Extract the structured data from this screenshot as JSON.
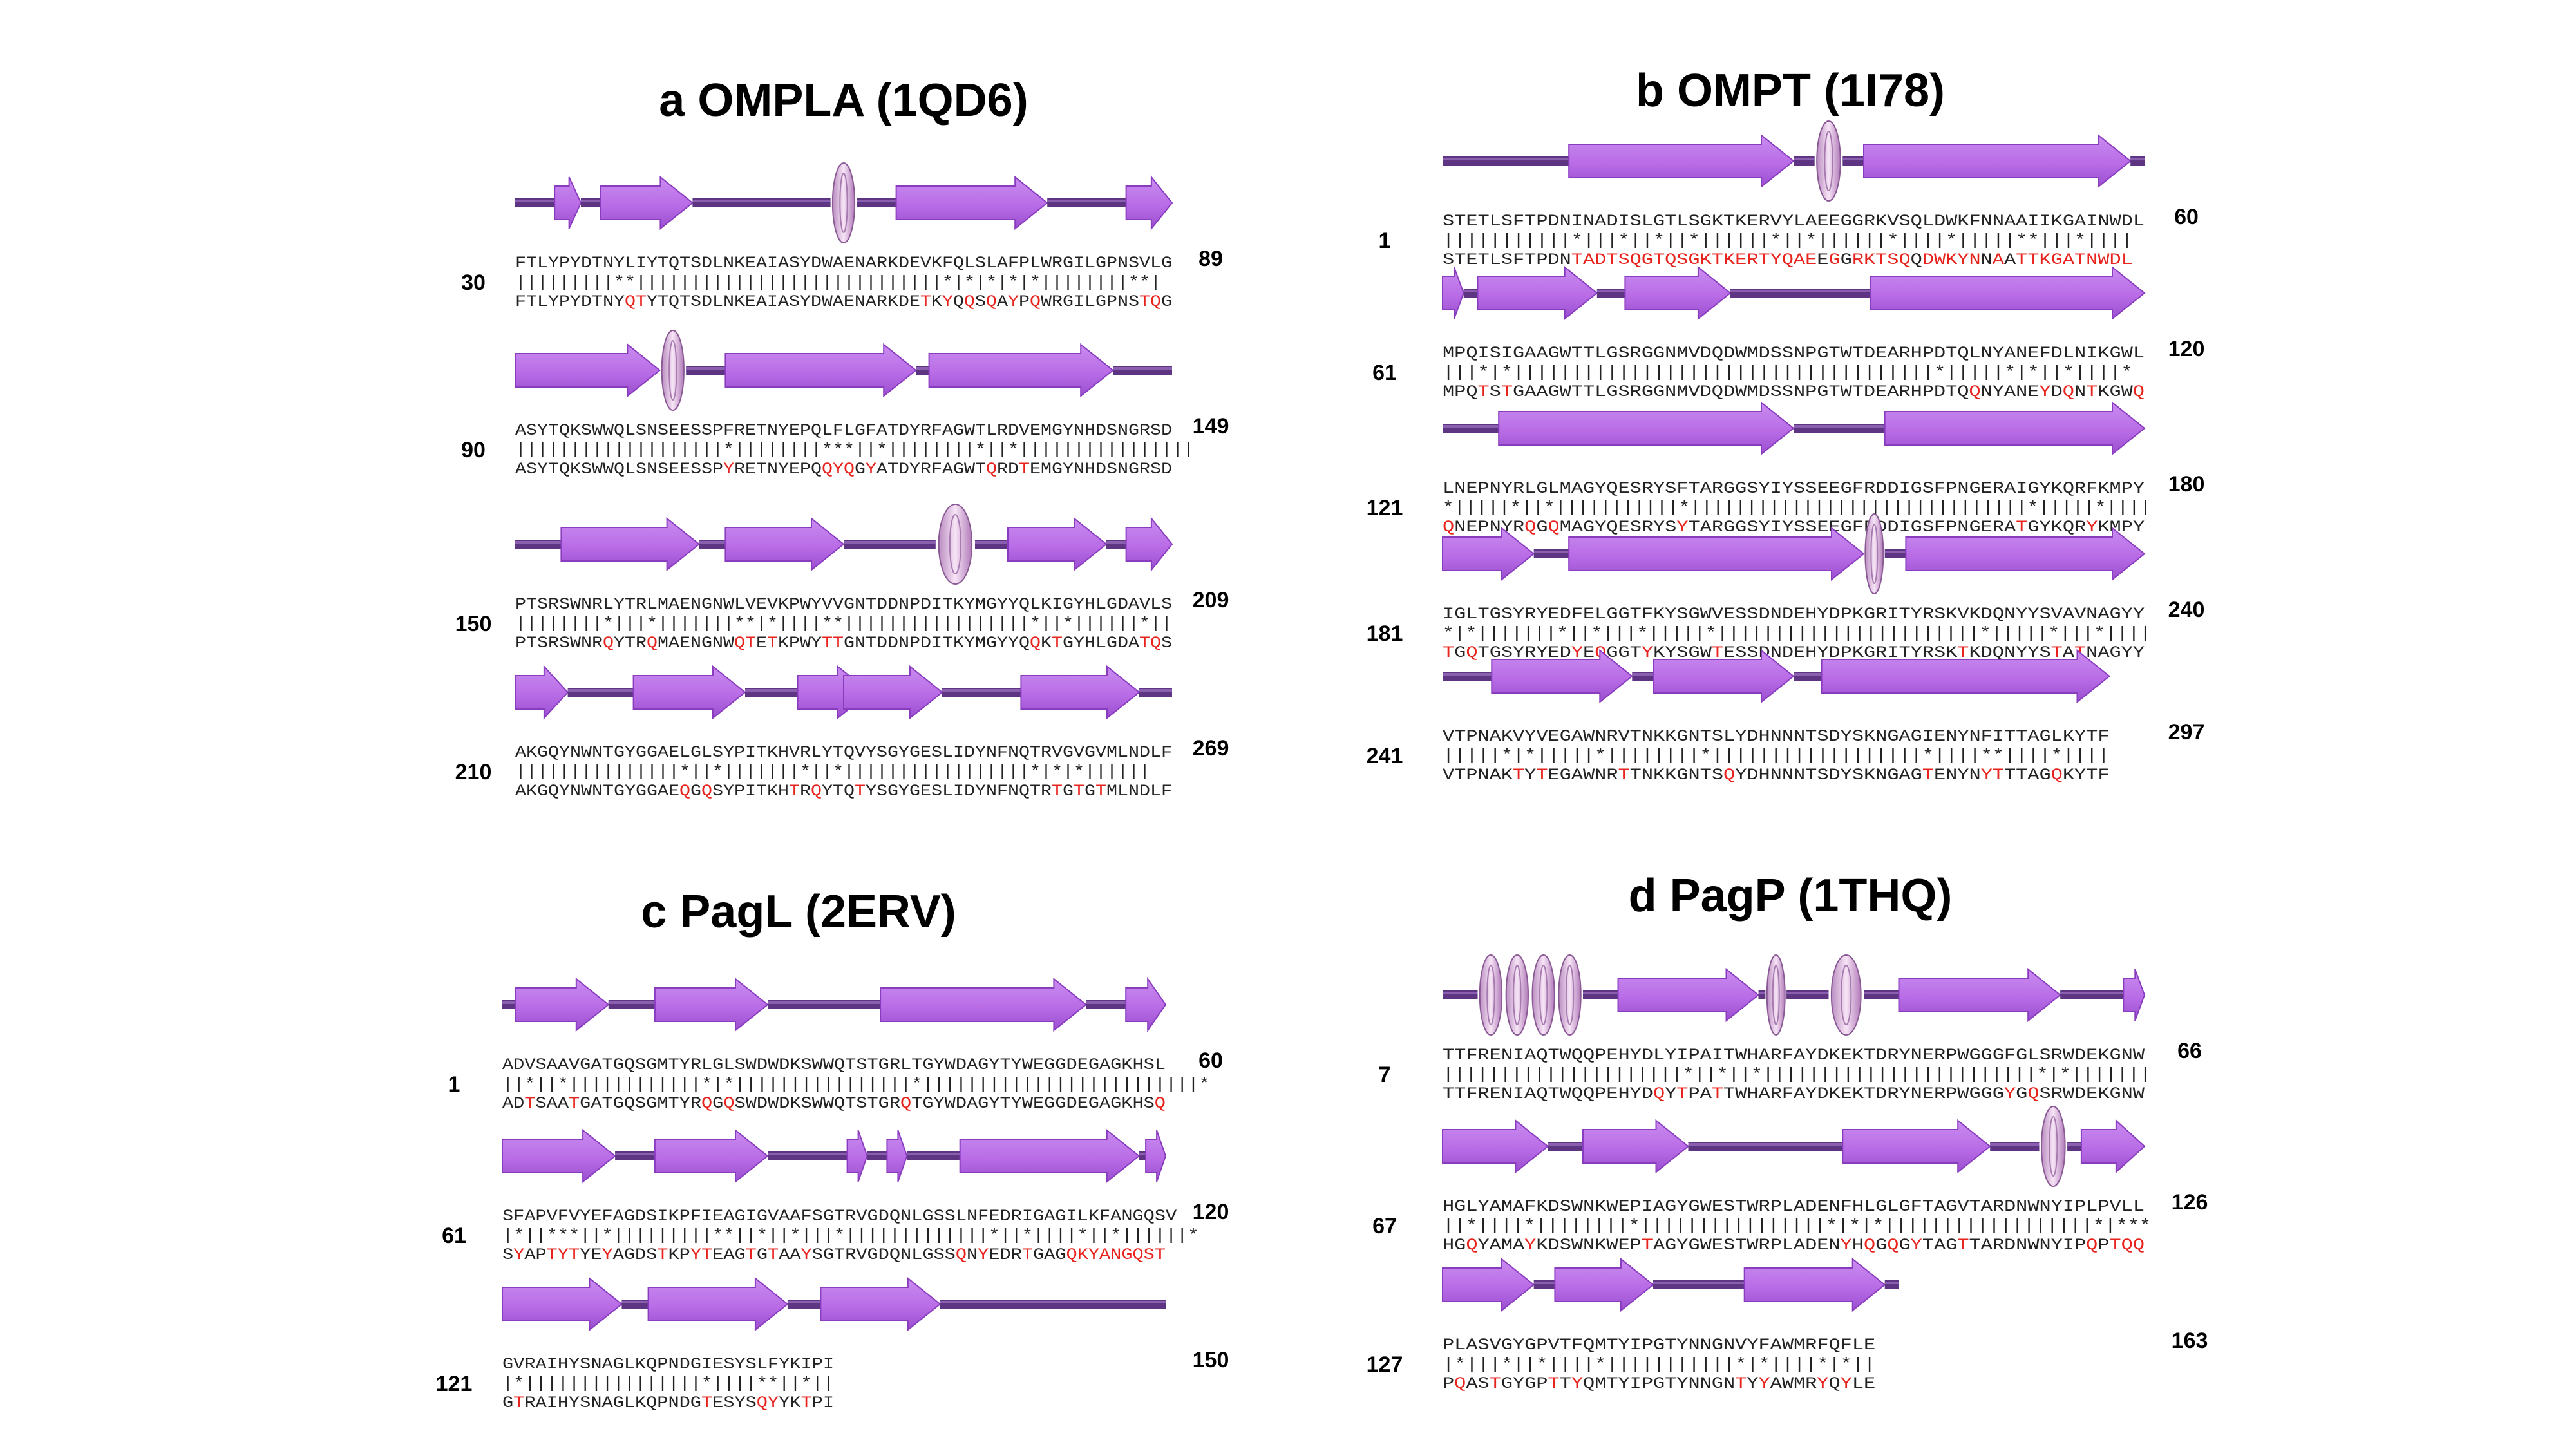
{
  "colors": {
    "strand": "#b96ce6",
    "strand_edge": "#8a3cbf",
    "loop": "#5e3583",
    "helix": "#e3bde6",
    "mutation": "#e8221c",
    "text": "#222222"
  },
  "panels": [
    {
      "id": "a",
      "title": "a  OMPLA (1QD6)",
      "blocks": [
        {
          "start": "30",
          "end": "89",
          "wt": "FTLYPYDTNYLIYTQTSDLNKEAIASYDWAENARKDEVKFQLSLAFPLWRGILGPNSVLG",
          "match": "|||||||||**||||||||||||||||||||||||||||*|*|*|*|*||||||||**|",
          "mut": "FTLYPYDTNYQTYTQTSDLNKEAIASYDWAENARKDETKYQQSQAYPQWRGILGPNSTQG",
          "ss": [
            {
              "t": "L",
              "s": 0,
              "e": 0.06
            },
            {
              "t": "E",
              "s": 0.06,
              "e": 0.1
            },
            {
              "t": "L",
              "s": 0.1,
              "e": 0.13
            },
            {
              "t": "E",
              "s": 0.13,
              "e": 0.27
            },
            {
              "t": "L",
              "s": 0.27,
              "e": 0.48
            },
            {
              "t": "H",
              "s": 0.48,
              "e": 0.52
            },
            {
              "t": "L",
              "s": 0.52,
              "e": 0.58
            },
            {
              "t": "E",
              "s": 0.58,
              "e": 0.81
            },
            {
              "t": "L",
              "s": 0.81,
              "e": 0.93
            },
            {
              "t": "E",
              "s": 0.93,
              "e": 1.0
            }
          ]
        },
        {
          "start": "90",
          "end": "149",
          "wt": "ASYTQKSWWQLSNSEESSPFRETNYEPQLFLGFATDYRFAGWTLRDVEMGYNHDSNGRSD",
          "match": "|||||||||||||||||||*||||||||***||*||||||||*||*||||||||||||||||",
          "mut": "ASYTQKSWWQLSNSEESSPYRETNYEPQQYQGYATDYRFAGWTQRDTEMGYNHDSNGRSD",
          "ss": [
            {
              "t": "E",
              "s": 0.0,
              "e": 0.22
            },
            {
              "t": "L",
              "s": 0.22,
              "e": 0.22
            },
            {
              "t": "H",
              "s": 0.22,
              "e": 0.26
            },
            {
              "t": "L",
              "s": 0.26,
              "e": 0.32
            },
            {
              "t": "E",
              "s": 0.32,
              "e": 0.61
            },
            {
              "t": "L",
              "s": 0.61,
              "e": 0.63
            },
            {
              "t": "E",
              "s": 0.63,
              "e": 0.91
            },
            {
              "t": "L",
              "s": 0.91,
              "e": 1.0
            }
          ]
        },
        {
          "start": "150",
          "end": "209",
          "wt": "PTSRSWNRLYTRLMAENGNWLVEVKPWYVVGNTDDNPDITKYMGYYQLKIGYHLGDAVLS",
          "match": "||||||||*|||*|||||||**|*||||**|||||||||||||||||*||*||||||*||",
          "mut": "PTSRSWNRQYTRQMAENGNWQTETKPWYTTGNTDDNPDITKYMGYYQQKTGYHLGDATQS",
          "ss": [
            {
              "t": "L",
              "s": 0,
              "e": 0.07
            },
            {
              "t": "E",
              "s": 0.07,
              "e": 0.28
            },
            {
              "t": "L",
              "s": 0.28,
              "e": 0.32
            },
            {
              "t": "E",
              "s": 0.32,
              "e": 0.5
            },
            {
              "t": "L",
              "s": 0.5,
              "e": 0.64
            },
            {
              "t": "H",
              "s": 0.64,
              "e": 0.7
            },
            {
              "t": "L",
              "s": 0.7,
              "e": 0.75
            },
            {
              "t": "E",
              "s": 0.75,
              "e": 0.9
            },
            {
              "t": "L",
              "s": 0.9,
              "e": 0.93
            },
            {
              "t": "E",
              "s": 0.93,
              "e": 1.0
            }
          ]
        },
        {
          "start": "210",
          "end": "269",
          "wt": "AKGQYNWNTGYGGAELGLSYPITKHVRLYTQVYSGYGESLIDYNFNQTRVGVGVMLNDLF",
          "match": "|||||||||||||||*||*|||||||*||*|||||||||||||||||*|*|*||||||",
          "mut": "AKGQYNWNTGYGGAEQGQSYPITKHTRQYTQTYSGYGESLIDYNFNQTRTGTGTMLNDLF",
          "ss": [
            {
              "t": "E",
              "s": 0.0,
              "e": 0.08
            },
            {
              "t": "L",
              "s": 0.08,
              "e": 0.18
            },
            {
              "t": "E",
              "s": 0.18,
              "e": 0.35
            },
            {
              "t": "L",
              "s": 0.35,
              "e": 0.43
            },
            {
              "t": "E",
              "s": 0.43,
              "e": 0.54
            },
            {
              "t": "L",
              "s": 0.54,
              "e": 0.5
            },
            {
              "t": "E",
              "s": 0.5,
              "e": 0.65
            },
            {
              "t": "L",
              "s": 0.65,
              "e": 0.77
            },
            {
              "t": "E",
              "s": 0.77,
              "e": 0.95
            },
            {
              "t": "L",
              "s": 0.95,
              "e": 1.0
            }
          ]
        }
      ]
    },
    {
      "id": "b",
      "title": "b  OMPT (1I78)",
      "blocks": [
        {
          "start": "1",
          "end": "60",
          "wt": "STETLSFTPDNINADISLGTLSGKTKERVYLAEEGGRKVSQLDWKFNNAAIIKGAINWDL",
          "match": "|||||||||||*|||*||*||*||||||*||*||||||*||||*|||||**|||*||||",
          "mut": "STETLSFTPDNTADTSQGTQSGKTKERTYQAEEGGRKTSQQDWKYNNAATTKGATNWDL",
          "ss": [
            {
              "t": "L",
              "s": 0,
              "e": 0.18
            },
            {
              "t": "E",
              "s": 0.18,
              "e": 0.5
            },
            {
              "t": "L",
              "s": 0.5,
              "e": 0.53
            },
            {
              "t": "H",
              "s": 0.53,
              "e": 0.57
            },
            {
              "t": "L",
              "s": 0.57,
              "e": 0.6
            },
            {
              "t": "E",
              "s": 0.6,
              "e": 0.98
            },
            {
              "t": "L",
              "s": 0.98,
              "e": 1.0
            }
          ]
        },
        {
          "start": "61",
          "end": "120",
          "wt": "MPQISIGAAGWTTLGSRGGNMVDQDWMDSSNPGTWTDEARHPDTQLNYANEFDLNIKGWL",
          "match": "|||*|*||||||||||||||||||||||||||||||||||||*|||||*|*||*||||*",
          "mut": "MPQTSTGAAGWTTLGSRGGNMVDQDWMDSSNPGTWTDEARHPDTQQNYANEYDQNTKGWQ",
          "ss": [
            {
              "t": "E",
              "s": 0.0,
              "e": 0.03
            },
            {
              "t": "L",
              "s": 0.03,
              "e": 0.05
            },
            {
              "t": "E",
              "s": 0.05,
              "e": 0.22
            },
            {
              "t": "L",
              "s": 0.22,
              "e": 0.26
            },
            {
              "t": "E",
              "s": 0.26,
              "e": 0.41
            },
            {
              "t": "L",
              "s": 0.41,
              "e": 0.61
            },
            {
              "t": "E",
              "s": 0.61,
              "e": 1.0
            }
          ]
        },
        {
          "start": "121",
          "end": "180",
          "wt": "LNEPNYRLGLMAGYQESRYSFTARGGSYIYSSEEGFRDDIGSFPNGERAIGYKQRFKMPY",
          "match": "*|||||*||*|||||||||||*||||||||||||||||||||||||||||||*|||||*||||",
          "mut": "QNEPNYRQGQMAGYQESRYSYTARGGSYIYSSEEGFRDDIGSFPNGERATGYKQRYKMPY",
          "ss": [
            {
              "t": "L",
              "s": 0,
              "e": 0.08
            },
            {
              "t": "E",
              "s": 0.08,
              "e": 0.5
            },
            {
              "t": "L",
              "s": 0.5,
              "e": 0.63
            },
            {
              "t": "E",
              "s": 0.63,
              "e": 1.0
            }
          ]
        },
        {
          "start": "181",
          "end": "240",
          "wt": "IGLTGSYRYEDFELGGTFKYSGWVESSDNDEHYDPKGRITYRSKVKDQNYYSVAVNAGYY",
          "match": "*|*|||||||*||*|||*|||||*|||||||||||||||||||||||*|||||*|||*||||",
          "mut": "TGQTGSYRYEDYEQGGTYKYSGWTESSDNDEHYDPKGRITYRSKTKDQNYYSTATNAGYY",
          "ss": [
            {
              "t": "E",
              "s": 0.0,
              "e": 0.13
            },
            {
              "t": "L",
              "s": 0.13,
              "e": 0.18
            },
            {
              "t": "E",
              "s": 0.18,
              "e": 0.6
            },
            {
              "t": "L",
              "s": 0.6,
              "e": 0.6
            },
            {
              "t": "H",
              "s": 0.6,
              "e": 0.63
            },
            {
              "t": "L",
              "s": 0.63,
              "e": 0.66
            },
            {
              "t": "E",
              "s": 0.66,
              "e": 1.0
            }
          ]
        },
        {
          "start": "241",
          "end": "297",
          "wt": "VTPNAKVYVEGAWNRVTNKKGNTSLYDHNNNTSDYSKNGAGIENYNFITTAGLKYTF",
          "match": "|||||*|*|||||*||||||||*||||||||||||||||||*||||**||||*||||",
          "mut": "VTPNAKTYTEGAWNRTTNKKGNTSQYDHNNNTSDYSKNGAGTENYNYTTTAGQKYTF",
          "ss": [
            {
              "t": "L",
              "s": 0,
              "e": 0.07
            },
            {
              "t": "E",
              "s": 0.07,
              "e": 0.27
            },
            {
              "t": "L",
              "s": 0.27,
              "e": 0.3
            },
            {
              "t": "E",
              "s": 0.3,
              "e": 0.5
            },
            {
              "t": "L",
              "s": 0.5,
              "e": 0.54
            },
            {
              "t": "E",
              "s": 0.54,
              "e": 0.95
            },
            {
              "t": "L",
              "s": 0.95,
              "e": 0.95
            }
          ]
        }
      ]
    },
    {
      "id": "c",
      "title": "c PagL (2ERV)",
      "blocks": [
        {
          "start": "1",
          "end": "60",
          "wt": "ADVSAAVGATGQSGMTYRLGLSWDWDKSWWQTSTGRLTGYWDAGYTYWEGGDEGAGKHSL",
          "match": "||*||*||||||||||||*|*||||||||||||||||*|||||||||||||||||||||||||*",
          "mut": "ADTSAATGATGQSGMTYRQGQSWDWDKSWWQTSTGRQTGYWDAGYTYWEGGDEGAGKHSQ",
          "ss": [
            {
              "t": "L",
              "s": 0,
              "e": 0.02
            },
            {
              "t": "E",
              "s": 0.02,
              "e": 0.16
            },
            {
              "t": "L",
              "s": 0.16,
              "e": 0.23
            },
            {
              "t": "E",
              "s": 0.23,
              "e": 0.4
            },
            {
              "t": "L",
              "s": 0.4,
              "e": 0.57
            },
            {
              "t": "E",
              "s": 0.57,
              "e": 0.88
            },
            {
              "t": "L",
              "s": 0.88,
              "e": 0.94
            },
            {
              "t": "E",
              "s": 0.94,
              "e": 1.0
            }
          ]
        },
        {
          "start": "61",
          "end": "120",
          "wt": "SFAPVFVYEFAGDSIKPFIEAGIGVAAFSGTRVGDQNLGSSLNFEDRIGAGILKFANGQSV",
          "match": "|*||***||*|||||||||**||*||*|||*|||||||||||||*||*||||*||*||||||*",
          "mut": "SYAPTYTYEYAGDSTKPYTEAGTGTAAYSGTRVGDQNLGSSQNYEDRTGAGQKYANGQST",
          "ss": [
            {
              "t": "E",
              "s": 0.0,
              "e": 0.17
            },
            {
              "t": "L",
              "s": 0.17,
              "e": 0.23
            },
            {
              "t": "E",
              "s": 0.23,
              "e": 0.4
            },
            {
              "t": "L",
              "s": 0.4,
              "e": 0.52
            },
            {
              "t": "E",
              "s": 0.52,
              "e": 0.55
            },
            {
              "t": "L",
              "s": 0.55,
              "e": 0.58
            },
            {
              "t": "E",
              "s": 0.58,
              "e": 0.61
            },
            {
              "t": "L",
              "s": 0.61,
              "e": 0.69
            },
            {
              "t": "E",
              "s": 0.69,
              "e": 0.96
            },
            {
              "t": "L",
              "s": 0.96,
              "e": 0.97
            },
            {
              "t": "E",
              "s": 0.97,
              "e": 1.0
            }
          ]
        },
        {
          "start": "121",
          "end": "150",
          "wt": "GVRAIHYSNAGLKQPNDGIESYSLFYKIPI",
          "match": "|*||||||||||||||||*||||**||*||",
          "mut": "GTRAIHYSNAGLKQPNDGTESYSQYYKTPI",
          "ss": [
            {
              "t": "E",
              "s": 0.0,
              "e": 0.18
            },
            {
              "t": "L",
              "s": 0.18,
              "e": 0.22
            },
            {
              "t": "E",
              "s": 0.22,
              "e": 0.43
            },
            {
              "t": "L",
              "s": 0.43,
              "e": 0.48
            },
            {
              "t": "E",
              "s": 0.48,
              "e": 0.66
            },
            {
              "t": "L",
              "s": 0.66,
              "e": 1.0
            }
          ]
        }
      ]
    },
    {
      "id": "d",
      "title": "d  PagP (1THQ)",
      "blocks": [
        {
          "start": "7",
          "end": "66",
          "wt": "TTFRENIAQTWQQPEHYDLYIPAITWHARFAYDKEKTDRYNERPWGGGFGLSRWDEKGNW",
          "match": "|||||||||||||||||||||*||*||*||||||||||||||||||||||||*|*|||||||",
          "mut": "TTFRENIAQTWQQPEHYDQYTPATTWHARFAYDKEKTDRYNERPWGGGYGQSRWDEKGNW",
          "ss": [
            {
              "t": "L",
              "s": 0,
              "e": 0.05
            },
            {
              "t": "H",
              "s": 0.05,
              "e": 0.2
            },
            {
              "t": "L",
              "s": 0.2,
              "e": 0.25
            },
            {
              "t": "E",
              "s": 0.25,
              "e": 0.45
            },
            {
              "t": "L",
              "s": 0.45,
              "e": 0.46
            },
            {
              "t": "H",
              "s": 0.46,
              "e": 0.49
            },
            {
              "t": "L",
              "s": 0.49,
              "e": 0.55
            },
            {
              "t": "H",
              "s": 0.55,
              "e": 0.6
            },
            {
              "t": "L",
              "s": 0.6,
              "e": 0.65
            },
            {
              "t": "E",
              "s": 0.65,
              "e": 0.88
            },
            {
              "t": "L",
              "s": 0.88,
              "e": 0.97
            },
            {
              "t": "E",
              "s": 0.97,
              "e": 1.0
            }
          ]
        },
        {
          "start": "67",
          "end": "126",
          "wt": "HGLYAMAFKDSWNKWEPIAGYGWESTWRPLADENFHLGLGFTAGVTARDNWNYIPLPVLL",
          "match": "||*||||*||||||||*||||||||||||||||*|*|*||||||||||||||||||*|***",
          "mut": "HGQYAMAYKDSWNKWEPTAGYGWESTWRPLADENYHQGQGYTAGTTARDNWNYIPQPTQQ",
          "ss": [
            {
              "t": "E",
              "s": 0.0,
              "e": 0.15
            },
            {
              "t": "L",
              "s": 0.15,
              "e": 0.2
            },
            {
              "t": "E",
              "s": 0.2,
              "e": 0.35
            },
            {
              "t": "L",
              "s": 0.35,
              "e": 0.57
            },
            {
              "t": "E",
              "s": 0.57,
              "e": 0.78
            },
            {
              "t": "L",
              "s": 0.78,
              "e": 0.85
            },
            {
              "t": "H",
              "s": 0.85,
              "e": 0.89
            },
            {
              "t": "L",
              "s": 0.89,
              "e": 0.91
            },
            {
              "t": "E",
              "s": 0.91,
              "e": 1.0
            }
          ]
        },
        {
          "start": "127",
          "end": "163",
          "wt": "PLASVGYGPVTFQMTYIPGTYNNGNVYFAWMRFQFLE",
          "match": "|*|||*||*||||*|||||||||||*|*||||*|*||",
          "mut": "PQASTGYGPTTYQMTYIPGTYNNGNTYYAWMRYQYLE",
          "ss": [
            {
              "t": "E",
              "s": 0.0,
              "e": 0.13
            },
            {
              "t": "L",
              "s": 0.13,
              "e": 0.16
            },
            {
              "t": "E",
              "s": 0.16,
              "e": 0.3
            },
            {
              "t": "L",
              "s": 0.3,
              "e": 0.43
            },
            {
              "t": "E",
              "s": 0.43,
              "e": 0.63
            },
            {
              "t": "L",
              "s": 0.63,
              "e": 0.65
            }
          ]
        }
      ]
    }
  ]
}
